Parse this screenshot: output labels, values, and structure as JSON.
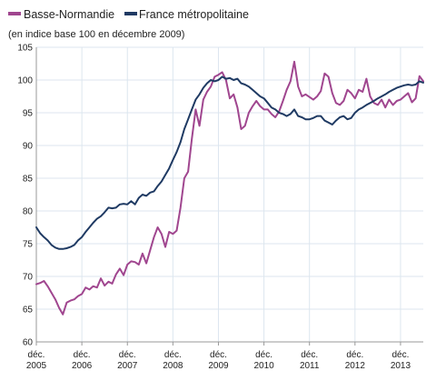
{
  "chart_data": {
    "type": "line",
    "title": "",
    "subtitle": "(en indice base 100 en décembre 2009)",
    "xlabel": "",
    "ylabel": "",
    "ylim": [
      60,
      105
    ],
    "yticks": [
      60,
      65,
      70,
      75,
      80,
      85,
      90,
      95,
      100,
      105
    ],
    "grid": true,
    "legend_position": "top-left",
    "x_tick_labels": [
      [
        "déc.",
        "2005"
      ],
      [
        "déc.",
        "2006"
      ],
      [
        "déc.",
        "2007"
      ],
      [
        "déc.",
        "2008"
      ],
      [
        "déc.",
        "2009"
      ],
      [
        "déc.",
        "2010"
      ],
      [
        "déc.",
        "2011"
      ],
      [
        "déc.",
        "2012"
      ],
      [
        "déc.",
        "2013"
      ]
    ],
    "series": [
      {
        "name": "Basse-Normandie",
        "color": "#a0468f",
        "points": [
          [
            "2005-12",
            68.8
          ],
          [
            "2006-01",
            69.0
          ],
          [
            "2006-02",
            69.3
          ],
          [
            "2006-03",
            68.5
          ],
          [
            "2006-04",
            67.5
          ],
          [
            "2006-05",
            66.5
          ],
          [
            "2006-06",
            65.2
          ],
          [
            "2006-07",
            64.2
          ],
          [
            "2006-08",
            66.0
          ],
          [
            "2006-09",
            66.3
          ],
          [
            "2006-10",
            66.5
          ],
          [
            "2006-11",
            67.0
          ],
          [
            "2006-12",
            67.3
          ],
          [
            "2007-01",
            68.3
          ],
          [
            "2007-02",
            68.0
          ],
          [
            "2007-03",
            68.5
          ],
          [
            "2007-04",
            68.3
          ],
          [
            "2007-05",
            69.7
          ],
          [
            "2007-06",
            68.6
          ],
          [
            "2007-07",
            69.2
          ],
          [
            "2007-08",
            68.9
          ],
          [
            "2007-09",
            70.3
          ],
          [
            "2007-10",
            71.2
          ],
          [
            "2007-11",
            70.2
          ],
          [
            "2007-12",
            71.8
          ],
          [
            "2008-01",
            72.3
          ],
          [
            "2008-02",
            72.2
          ],
          [
            "2008-03",
            71.8
          ],
          [
            "2008-04",
            73.5
          ],
          [
            "2008-05",
            72.0
          ],
          [
            "2008-06",
            74.0
          ],
          [
            "2008-07",
            76.0
          ],
          [
            "2008-08",
            77.5
          ],
          [
            "2008-09",
            76.5
          ],
          [
            "2008-10",
            74.5
          ],
          [
            "2008-11",
            76.8
          ],
          [
            "2008-12",
            76.5
          ],
          [
            "2009-01",
            77.0
          ],
          [
            "2009-02",
            80.5
          ],
          [
            "2009-03",
            85.0
          ],
          [
            "2009-04",
            86.0
          ],
          [
            "2009-05",
            91.0
          ],
          [
            "2009-06",
            95.5
          ],
          [
            "2009-07",
            93.0
          ],
          [
            "2009-08",
            97.0
          ],
          [
            "2009-09",
            98.2
          ],
          [
            "2009-10",
            99.0
          ],
          [
            "2009-11",
            100.5
          ],
          [
            "2009-12",
            100.8
          ],
          [
            "2010-01",
            101.2
          ],
          [
            "2010-02",
            100.0
          ],
          [
            "2010-03",
            97.2
          ],
          [
            "2010-04",
            97.8
          ],
          [
            "2010-05",
            95.8
          ],
          [
            "2010-06",
            92.5
          ],
          [
            "2010-07",
            93.0
          ],
          [
            "2010-08",
            95.0
          ],
          [
            "2010-09",
            96.0
          ],
          [
            "2010-10",
            96.8
          ],
          [
            "2010-11",
            96.0
          ],
          [
            "2010-12",
            95.5
          ],
          [
            "2011-01",
            95.5
          ],
          [
            "2011-02",
            94.8
          ],
          [
            "2011-03",
            94.3
          ],
          [
            "2011-04",
            95.2
          ],
          [
            "2011-05",
            96.8
          ],
          [
            "2011-06",
            98.5
          ],
          [
            "2011-07",
            99.8
          ],
          [
            "2011-08",
            102.8
          ],
          [
            "2011-09",
            99.0
          ],
          [
            "2011-10",
            97.5
          ],
          [
            "2011-11",
            97.8
          ],
          [
            "2011-12",
            97.4
          ],
          [
            "2012-01",
            97.0
          ],
          [
            "2012-02",
            97.5
          ],
          [
            "2012-03",
            98.3
          ],
          [
            "2012-04",
            101.0
          ],
          [
            "2012-05",
            100.5
          ],
          [
            "2012-06",
            98.0
          ],
          [
            "2012-07",
            96.5
          ],
          [
            "2012-08",
            96.2
          ],
          [
            "2012-09",
            96.8
          ],
          [
            "2012-10",
            98.5
          ],
          [
            "2012-11",
            98.0
          ],
          [
            "2012-12",
            97.2
          ],
          [
            "2013-01",
            98.5
          ],
          [
            "2013-02",
            98.2
          ],
          [
            "2013-03",
            100.2
          ],
          [
            "2013-04",
            97.5
          ],
          [
            "2013-05",
            96.5
          ],
          [
            "2013-06",
            96.2
          ],
          [
            "2013-07",
            97.0
          ],
          [
            "2013-08",
            95.8
          ],
          [
            "2013-09",
            97.0
          ],
          [
            "2013-10",
            96.2
          ],
          [
            "2013-11",
            96.8
          ],
          [
            "2013-12",
            97.0
          ],
          [
            "2014-01",
            97.5
          ],
          [
            "2014-02",
            98.0
          ],
          [
            "2014-03",
            96.6
          ],
          [
            "2014-04",
            97.2
          ],
          [
            "2014-05",
            100.6
          ],
          [
            "2014-06",
            99.8
          ]
        ]
      },
      {
        "name": "France métropolitaine",
        "color": "#1f3a63",
        "points": [
          [
            "2005-12",
            77.5
          ],
          [
            "2006-01",
            76.6
          ],
          [
            "2006-02",
            76.0
          ],
          [
            "2006-03",
            75.5
          ],
          [
            "2006-04",
            74.8
          ],
          [
            "2006-05",
            74.4
          ],
          [
            "2006-06",
            74.2
          ],
          [
            "2006-07",
            74.2
          ],
          [
            "2006-08",
            74.3
          ],
          [
            "2006-09",
            74.5
          ],
          [
            "2006-10",
            74.8
          ],
          [
            "2006-11",
            75.5
          ],
          [
            "2006-12",
            76.0
          ],
          [
            "2007-01",
            76.8
          ],
          [
            "2007-02",
            77.5
          ],
          [
            "2007-03",
            78.2
          ],
          [
            "2007-04",
            78.8
          ],
          [
            "2007-05",
            79.2
          ],
          [
            "2007-06",
            79.8
          ],
          [
            "2007-07",
            80.5
          ],
          [
            "2007-08",
            80.4
          ],
          [
            "2007-09",
            80.5
          ],
          [
            "2007-10",
            81.0
          ],
          [
            "2007-11",
            81.1
          ],
          [
            "2007-12",
            81.0
          ],
          [
            "2008-01",
            81.5
          ],
          [
            "2008-02",
            81.0
          ],
          [
            "2008-03",
            82.0
          ],
          [
            "2008-04",
            82.5
          ],
          [
            "2008-05",
            82.3
          ],
          [
            "2008-06",
            82.8
          ],
          [
            "2008-07",
            83.0
          ],
          [
            "2008-08",
            83.8
          ],
          [
            "2008-09",
            84.5
          ],
          [
            "2008-10",
            85.5
          ],
          [
            "2008-11",
            86.5
          ],
          [
            "2008-12",
            87.8
          ],
          [
            "2009-01",
            89.0
          ],
          [
            "2009-02",
            90.5
          ],
          [
            "2009-03",
            92.5
          ],
          [
            "2009-04",
            94.0
          ],
          [
            "2009-05",
            95.5
          ],
          [
            "2009-06",
            97.0
          ],
          [
            "2009-07",
            97.8
          ],
          [
            "2009-08",
            98.8
          ],
          [
            "2009-09",
            99.5
          ],
          [
            "2009-10",
            100.0
          ],
          [
            "2009-11",
            99.8
          ],
          [
            "2009-12",
            100.0
          ],
          [
            "2010-01",
            100.5
          ],
          [
            "2010-02",
            100.2
          ],
          [
            "2010-03",
            100.3
          ],
          [
            "2010-04",
            100.0
          ],
          [
            "2010-05",
            100.2
          ],
          [
            "2010-06",
            99.5
          ],
          [
            "2010-07",
            99.3
          ],
          [
            "2010-08",
            99.0
          ],
          [
            "2010-09",
            98.5
          ],
          [
            "2010-10",
            98.0
          ],
          [
            "2010-11",
            97.5
          ],
          [
            "2010-12",
            97.2
          ],
          [
            "2011-01",
            96.5
          ],
          [
            "2011-02",
            95.8
          ],
          [
            "2011-03",
            95.5
          ],
          [
            "2011-04",
            95.0
          ],
          [
            "2011-05",
            94.8
          ],
          [
            "2011-06",
            94.5
          ],
          [
            "2011-07",
            94.8
          ],
          [
            "2011-08",
            95.5
          ],
          [
            "2011-09",
            94.5
          ],
          [
            "2011-10",
            94.3
          ],
          [
            "2011-11",
            94.0
          ],
          [
            "2011-12",
            94.0
          ],
          [
            "2012-01",
            94.2
          ],
          [
            "2012-02",
            94.5
          ],
          [
            "2012-03",
            94.5
          ],
          [
            "2012-04",
            93.8
          ],
          [
            "2012-05",
            93.5
          ],
          [
            "2012-06",
            93.2
          ],
          [
            "2012-07",
            93.8
          ],
          [
            "2012-08",
            94.3
          ],
          [
            "2012-09",
            94.5
          ],
          [
            "2012-10",
            94.0
          ],
          [
            "2012-11",
            94.2
          ],
          [
            "2012-12",
            95.0
          ],
          [
            "2013-01",
            95.5
          ],
          [
            "2013-02",
            95.8
          ],
          [
            "2013-03",
            96.2
          ],
          [
            "2013-04",
            96.5
          ],
          [
            "2013-05",
            96.8
          ],
          [
            "2013-06",
            97.2
          ],
          [
            "2013-07",
            97.5
          ],
          [
            "2013-08",
            97.8
          ],
          [
            "2013-09",
            98.2
          ],
          [
            "2013-10",
            98.5
          ],
          [
            "2013-11",
            98.8
          ],
          [
            "2013-12",
            99.0
          ],
          [
            "2014-01",
            99.2
          ],
          [
            "2014-02",
            99.3
          ],
          [
            "2014-03",
            99.2
          ],
          [
            "2014-04",
            99.3
          ],
          [
            "2014-05",
            99.8
          ],
          [
            "2014-06",
            99.6
          ]
        ]
      }
    ]
  }
}
